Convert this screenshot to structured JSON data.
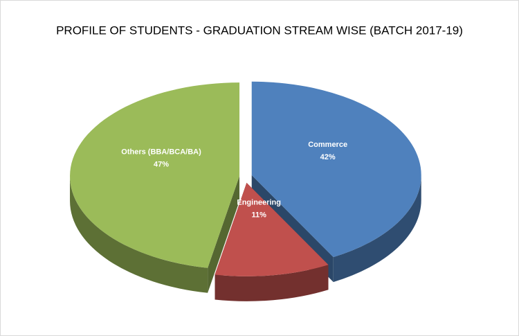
{
  "chart_data": {
    "type": "pie",
    "title": "PROFILE OF STUDENTS - GRADUATION STREAM WISE (BATCH 2017-19)",
    "categories": [
      "Commerce",
      "Engineering",
      "Others (BBA/BCA/BA)"
    ],
    "values": [
      42,
      11,
      47
    ],
    "value_labels": [
      "42%",
      "11%",
      "47%"
    ],
    "colors": [
      "#4f81bd",
      "#c0504d",
      "#9bbb59"
    ]
  }
}
